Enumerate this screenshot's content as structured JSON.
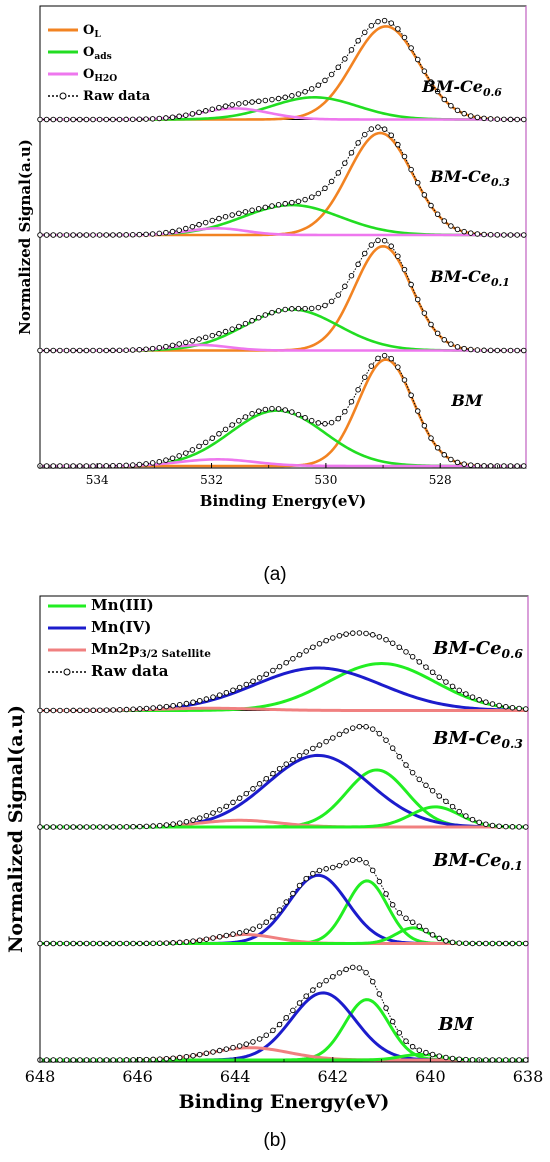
{
  "panels": [
    {
      "caption": "(a)",
      "chart_data": {
        "type": "line",
        "xlabel": "Binding Energy(eV)",
        "ylabel": "Normalized Signal(a.u)",
        "xlim": [
          535,
          526.5
        ],
        "x_ticks": [
          "534",
          "532",
          "530",
          "528"
        ],
        "x_tick_values": [
          534,
          532,
          530,
          528
        ],
        "grid": false,
        "legend_position": "top-left",
        "legend": [
          {
            "key": "ol",
            "label": "O",
            "sub": "L",
            "color": "#f28322",
            "style": "line"
          },
          {
            "key": "oads",
            "label": "O",
            "sub": "ads",
            "color": "#22dd22",
            "style": "line"
          },
          {
            "key": "oh2o",
            "label": "O",
            "sub": "H2O",
            "color": "#ee77ee",
            "style": "line"
          },
          {
            "key": "raw",
            "label": "Raw data",
            "sub": "",
            "color": "#000000",
            "style": "dotted-circle"
          }
        ],
        "stacks": [
          {
            "label": "BM-Ce",
            "sub": "0.6",
            "components": [
              {
                "key": "ol",
                "center": 528.95,
                "height": 0.84,
                "width": 0.58
              },
              {
                "key": "oads",
                "center": 530.2,
                "height": 0.2,
                "width": 0.75
              },
              {
                "key": "oh2o",
                "center": 531.6,
                "height": 0.1,
                "width": 0.6
              }
            ]
          },
          {
            "label": "BM-Ce",
            "sub": "0.3",
            "components": [
              {
                "key": "ol",
                "center": 529.05,
                "height": 0.92,
                "width": 0.56
              },
              {
                "key": "oads",
                "center": 530.6,
                "height": 0.27,
                "width": 0.85
              },
              {
                "key": "oh2o",
                "center": 531.9,
                "height": 0.06,
                "width": 0.5
              }
            ]
          },
          {
            "label": "BM-Ce",
            "sub": "0.1",
            "components": [
              {
                "key": "ol",
                "center": 529.0,
                "height": 0.94,
                "width": 0.5
              },
              {
                "key": "oads",
                "center": 530.6,
                "height": 0.37,
                "width": 0.82
              },
              {
                "key": "oh2o",
                "center": 532.2,
                "height": 0.05,
                "width": 0.5
              }
            ]
          },
          {
            "label": "BM",
            "sub": "",
            "components": [
              {
                "key": "ol",
                "center": 528.95,
                "height": 0.96,
                "width": 0.48
              },
              {
                "key": "oads",
                "center": 530.85,
                "height": 0.5,
                "width": 0.82
              },
              {
                "key": "oh2o",
                "center": 531.9,
                "height": 0.06,
                "width": 0.65
              }
            ]
          }
        ]
      }
    },
    {
      "caption": "(b)",
      "chart_data": {
        "type": "line",
        "xlabel": "Binding Energy(eV)",
        "ylabel": "Normalized Signal(a.u)",
        "xlim": [
          648,
          638
        ],
        "x_ticks": [
          "648",
          "646",
          "644",
          "642",
          "640",
          "638"
        ],
        "x_tick_values": [
          648,
          646,
          644,
          642,
          640,
          638
        ],
        "grid": false,
        "legend_position": "top-left",
        "legend": [
          {
            "key": "mn3",
            "label": "Mn(III)",
            "sub": "",
            "color": "#22ee22",
            "style": "line"
          },
          {
            "key": "mn4",
            "label": "Mn(IV)",
            "sub": "",
            "color": "#1c1ccc",
            "style": "line"
          },
          {
            "key": "sat",
            "label": "Mn2p",
            "sub": "3/2 Satellite",
            "color": "#f08080",
            "style": "line"
          },
          {
            "key": "raw",
            "label": "Raw data",
            "sub": "",
            "color": "#000000",
            "style": "dotted-circle"
          }
        ],
        "stacks": [
          {
            "label": "BM-Ce",
            "sub": "0.6",
            "components": [
              {
                "key": "mn3",
                "center": 641.0,
                "height": 0.42,
                "width": 1.1
              },
              {
                "key": "mn4",
                "center": 642.3,
                "height": 0.38,
                "width": 1.3
              },
              {
                "key": "sat",
                "center": 644.5,
                "height": 0.02,
                "width": 1.0
              }
            ]
          },
          {
            "label": "BM-Ce",
            "sub": "0.3",
            "components": [
              {
                "key": "mn3",
                "center": 641.1,
                "height": 0.51,
                "width": 0.62
              },
              {
                "key": "mn4",
                "center": 642.3,
                "height": 0.64,
                "width": 1.05
              },
              {
                "key": "sat",
                "center": 643.9,
                "height": 0.06,
                "width": 0.8
              },
              {
                "key": "mn3",
                "center": 639.9,
                "height": 0.18,
                "width": 0.5
              }
            ]
          },
          {
            "label": "BM-Ce",
            "sub": "0.1",
            "components": [
              {
                "key": "mn3",
                "center": 641.3,
                "height": 0.56,
                "width": 0.42
              },
              {
                "key": "mn4",
                "center": 642.3,
                "height": 0.61,
                "width": 0.6
              },
              {
                "key": "sat",
                "center": 643.8,
                "height": 0.08,
                "width": 0.65
              },
              {
                "key": "mn3",
                "center": 640.35,
                "height": 0.14,
                "width": 0.35
              }
            ]
          },
          {
            "label": "BM",
            "sub": "",
            "components": [
              {
                "key": "mn3",
                "center": 641.3,
                "height": 0.54,
                "width": 0.45
              },
              {
                "key": "mn4",
                "center": 642.2,
                "height": 0.6,
                "width": 0.65
              },
              {
                "key": "sat",
                "center": 643.7,
                "height": 0.11,
                "width": 0.8
              },
              {
                "key": "mn3",
                "center": 640.2,
                "height": 0.05,
                "width": 0.4
              }
            ]
          }
        ]
      }
    }
  ]
}
